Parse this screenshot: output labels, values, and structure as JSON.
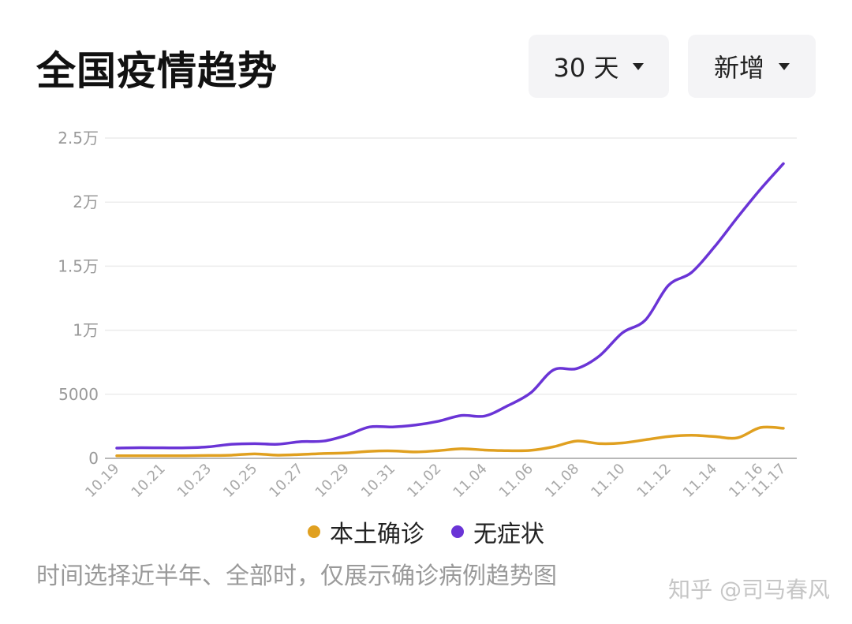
{
  "header": {
    "title": "全国疫情趋势",
    "range_label": "30 天",
    "metric_label": "新增"
  },
  "chart_data": {
    "type": "line",
    "x": [
      "10.19",
      "10.20",
      "10.21",
      "10.22",
      "10.23",
      "10.24",
      "10.25",
      "10.26",
      "10.27",
      "10.28",
      "10.29",
      "10.30",
      "10.31",
      "11.01",
      "11.02",
      "11.03",
      "11.04",
      "11.05",
      "11.06",
      "11.07",
      "11.08",
      "11.09",
      "11.10",
      "11.11",
      "11.12",
      "11.13",
      "11.14",
      "11.15",
      "11.16",
      "11.17"
    ],
    "x_tick_labels": [
      "10.19",
      "10.21",
      "10.23",
      "10.25",
      "10.27",
      "10.29",
      "10.31",
      "11.02",
      "11.04",
      "11.06",
      "11.08",
      "11.10",
      "11.12",
      "11.14",
      "11.16",
      "11.17"
    ],
    "y_ticks": [
      0,
      5000,
      10000,
      15000,
      20000,
      25000
    ],
    "y_tick_labels": [
      "0",
      "5000",
      "1万",
      "1.5万",
      "2万",
      "2.5万"
    ],
    "ylim": [
      0,
      25000
    ],
    "grid": true,
    "legend_position": "bottom",
    "series": [
      {
        "name": "本土确诊",
        "color": "#e0a020",
        "values": [
          200,
          200,
          200,
          200,
          220,
          250,
          350,
          250,
          300,
          380,
          420,
          550,
          580,
          500,
          600,
          750,
          650,
          600,
          620,
          900,
          1350,
          1150,
          1200,
          1450,
          1700,
          1800,
          1700,
          1600,
          2400,
          2350
        ]
      },
      {
        "name": "无症状",
        "color": "#6a34d6",
        "values": [
          800,
          830,
          820,
          820,
          900,
          1100,
          1150,
          1100,
          1300,
          1350,
          1800,
          2450,
          2450,
          2600,
          2900,
          3350,
          3300,
          4100,
          5100,
          6900,
          7000,
          8000,
          9800,
          10800,
          13500,
          14500,
          16500,
          18800,
          21000,
          23000
        ]
      }
    ]
  },
  "footnote": "时间选择近半年、全部时，仅展示确诊病例趋势图",
  "watermark": "知乎 @司马春风"
}
